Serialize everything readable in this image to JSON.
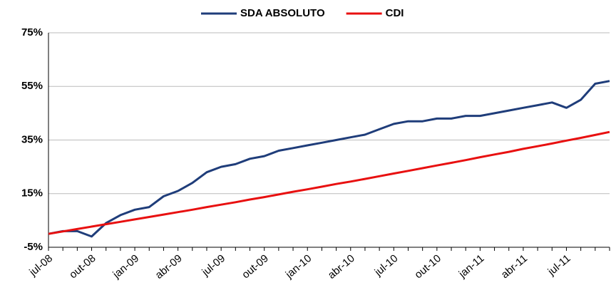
{
  "chart_data": {
    "type": "line",
    "categories": [
      "jul-08",
      null,
      null,
      "out-08",
      null,
      null,
      "jan-09",
      null,
      null,
      "abr-09",
      null,
      null,
      "jul-09",
      null,
      null,
      "out-09",
      null,
      null,
      "jan-10",
      null,
      null,
      "abr-10",
      null,
      null,
      "jul-10",
      null,
      null,
      "out-10",
      null,
      null,
      "jan-11",
      null,
      null,
      "abr-11",
      null,
      null,
      "jul-11",
      null,
      null,
      null
    ],
    "series": [
      {
        "name": "SDA ABSOLUTO",
        "color": "#1f3d7a",
        "values": [
          0,
          1,
          1,
          -1,
          4,
          7,
          9,
          10,
          14,
          16,
          19,
          23,
          25,
          26,
          28,
          29,
          31,
          32,
          33,
          34,
          35,
          36,
          37,
          39,
          41,
          42,
          42,
          43,
          43,
          44,
          44,
          45,
          46,
          47,
          48,
          49,
          47,
          50,
          56,
          57
        ]
      },
      {
        "name": "CDI",
        "color": "#e81010",
        "values": [
          0,
          0.9,
          1.8,
          2.7,
          3.6,
          4.5,
          5.4,
          6.3,
          7.2,
          8.1,
          9.0,
          10.0,
          10.9,
          11.8,
          12.8,
          13.7,
          14.7,
          15.7,
          16.6,
          17.6,
          18.6,
          19.5,
          20.5,
          21.5,
          22.5,
          23.5,
          24.5,
          25.5,
          26.5,
          27.5,
          28.6,
          29.6,
          30.6,
          31.7,
          32.7,
          33.7,
          34.8,
          35.8,
          36.9,
          38.0
        ]
      }
    ],
    "ylim": [
      -5,
      75
    ],
    "yticks": [
      {
        "value": -5,
        "label": "-5%"
      },
      {
        "value": 15,
        "label": "15%"
      },
      {
        "value": 35,
        "label": "35%"
      },
      {
        "value": 55,
        "label": "55%"
      },
      {
        "value": 75,
        "label": "75%"
      }
    ],
    "grid": true,
    "legend": "top"
  }
}
